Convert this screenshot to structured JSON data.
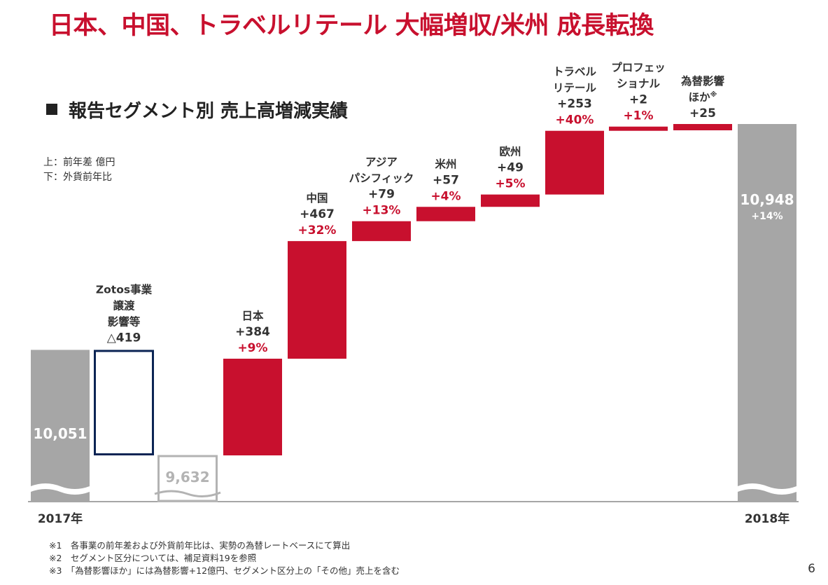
{
  "title": "日本、中国、トラベルリテール 大幅増収/米州 成長転換",
  "subtitle": "報告セグメント別 売上高増減実績",
  "legend_note": [
    "上：前年差 億円",
    "下：外貨前年比"
  ],
  "footnotes": [
    "※1　各事業の前年差および外貨前年比は、実勢の為替レートベースにて算出",
    "※2　セグメント区分については、補足資料19を参照",
    "※3　「為替影響ほか」には為替影響+12億円、セグメント区分上の「その他」売上を含む"
  ],
  "page_number": "6",
  "colors": {
    "red": "#c8102e",
    "gray": "#a6a6a6",
    "navy": "#0b2454",
    "light_gray": "#b3b3b3",
    "text": "#333333"
  },
  "chart_data": {
    "type": "bar",
    "subtype": "waterfall",
    "categories": [
      "2017年",
      "Zotos事業譲渡影響等",
      "",
      "日本",
      "中国",
      "アジアパシフィック",
      "米州",
      "欧州",
      "トラベルリテール",
      "プロフェッショナル",
      "為替影響ほか",
      "2018年"
    ],
    "bars": [
      {
        "kind": "total",
        "value": 10051,
        "value_label": "10,051",
        "axis_label": "2017年"
      },
      {
        "kind": "decrease",
        "delta": -419,
        "label_lines": [
          "Zotos事業",
          "譲渡",
          "影響等",
          "△419"
        ]
      },
      {
        "kind": "subtotal",
        "value": 9632,
        "value_label": "9,632"
      },
      {
        "kind": "increase",
        "delta": 384,
        "label_lines": [
          "日本",
          "+384"
        ],
        "pct": "+9%"
      },
      {
        "kind": "increase",
        "delta": 467,
        "label_lines": [
          "中国",
          "+467"
        ],
        "pct": "+32%"
      },
      {
        "kind": "increase",
        "delta": 79,
        "label_lines": [
          "アジア",
          "パシフィック",
          "+79"
        ],
        "pct": "+13%"
      },
      {
        "kind": "increase",
        "delta": 57,
        "label_lines": [
          "米州",
          "+57"
        ],
        "pct": "+4%"
      },
      {
        "kind": "increase",
        "delta": 49,
        "label_lines": [
          "欧州",
          "+49"
        ],
        "pct": "+5%"
      },
      {
        "kind": "increase",
        "delta": 253,
        "label_lines": [
          "トラベル",
          "リテール",
          "+253"
        ],
        "pct": "+40%"
      },
      {
        "kind": "increase",
        "delta": 2,
        "label_lines": [
          "プロフェッ",
          "ショナル",
          "+2"
        ],
        "pct": "+1%"
      },
      {
        "kind": "increase",
        "delta": 25,
        "label_lines": [
          "為替影響",
          "ほか",
          "+25"
        ],
        "note_mark": "※"
      },
      {
        "kind": "total",
        "value": 10948,
        "value_label": "10,948",
        "pct": "+14%",
        "axis_label": "2018年"
      }
    ],
    "axis_break": true
  }
}
